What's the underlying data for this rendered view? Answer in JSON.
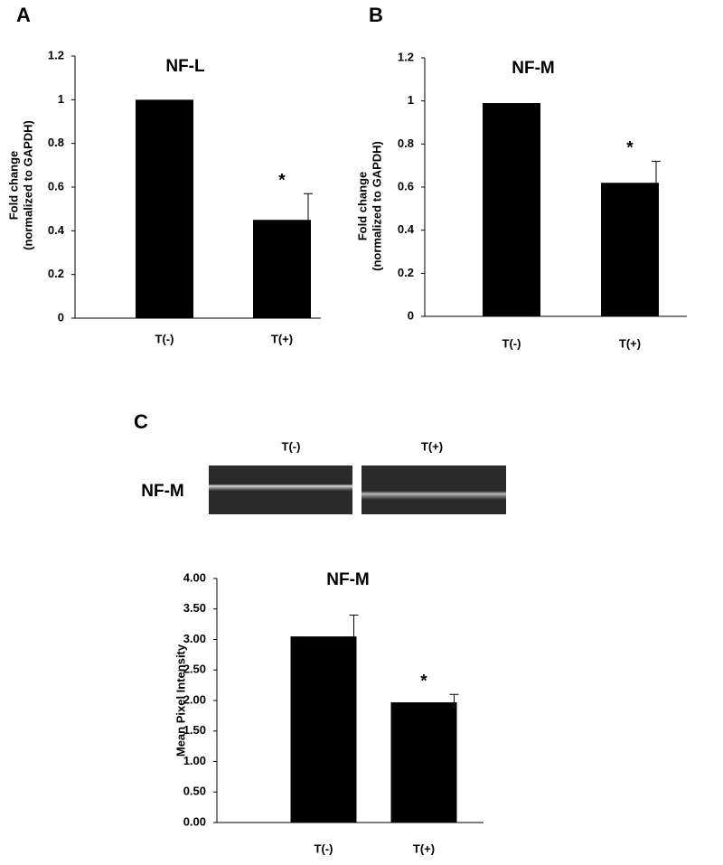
{
  "chart_data": [
    {
      "type": "bar",
      "panel": "A",
      "title": "NF-L",
      "ylabel": [
        "Fold change",
        "(normalized to GAPDH)"
      ],
      "categories": [
        "T(-)",
        "T(+)"
      ],
      "values": [
        1,
        0.45
      ],
      "errors": [
        0,
        0.12
      ],
      "color": "#000000",
      "annotations": [
        {
          "text": "*",
          "x": "T(+)"
        }
      ],
      "ylim": [
        0,
        1.2
      ],
      "yticks": [
        0,
        0.2,
        0.4,
        0.6,
        0.8,
        1,
        1.2
      ]
    },
    {
      "type": "bar",
      "panel": "B",
      "title": "NF-M",
      "ylabel": [
        "Fold change",
        "(normalized to GAPDH)"
      ],
      "categories": [
        "T(-)",
        "T(+)"
      ],
      "values": [
        0.99,
        0.62
      ],
      "errors": [
        0,
        0.1
      ],
      "color": "#000000",
      "annotations": [
        {
          "text": "*",
          "x": "T(+)"
        }
      ],
      "ylim": [
        0,
        1.2
      ],
      "yticks": [
        0,
        0.2,
        0.4,
        0.6,
        0.8,
        1,
        1.2
      ]
    },
    {
      "type": "bar",
      "panel": "C",
      "title": "NF-M",
      "ylabel": [
        "Mean Pixel Intensity"
      ],
      "categories": [
        "T(-)",
        "T(+)"
      ],
      "values": [
        3.05,
        1.97
      ],
      "errors": [
        0.35,
        0.13
      ],
      "color": "#000000",
      "annotations": [
        {
          "text": "*",
          "x": "T(+)"
        }
      ],
      "ylim": [
        0,
        4
      ],
      "yticks": [
        {
          "value": 0,
          "label": "0.00"
        },
        {
          "value": 0.5,
          "label": "0.50"
        },
        {
          "value": 1,
          "label": "1.00"
        },
        {
          "value": 1.5,
          "label": "1.50"
        },
        {
          "value": 2,
          "label": "2.00"
        },
        {
          "value": 2.5,
          "label": "2.50"
        },
        {
          "value": 3,
          "label": "3.00"
        },
        {
          "value": 3.5,
          "label": "3.50"
        },
        {
          "value": 4,
          "label": "4.00"
        }
      ]
    }
  ],
  "blot": {
    "label": "NF-M",
    "lanes": [
      "T(-)",
      "T(+)"
    ]
  }
}
